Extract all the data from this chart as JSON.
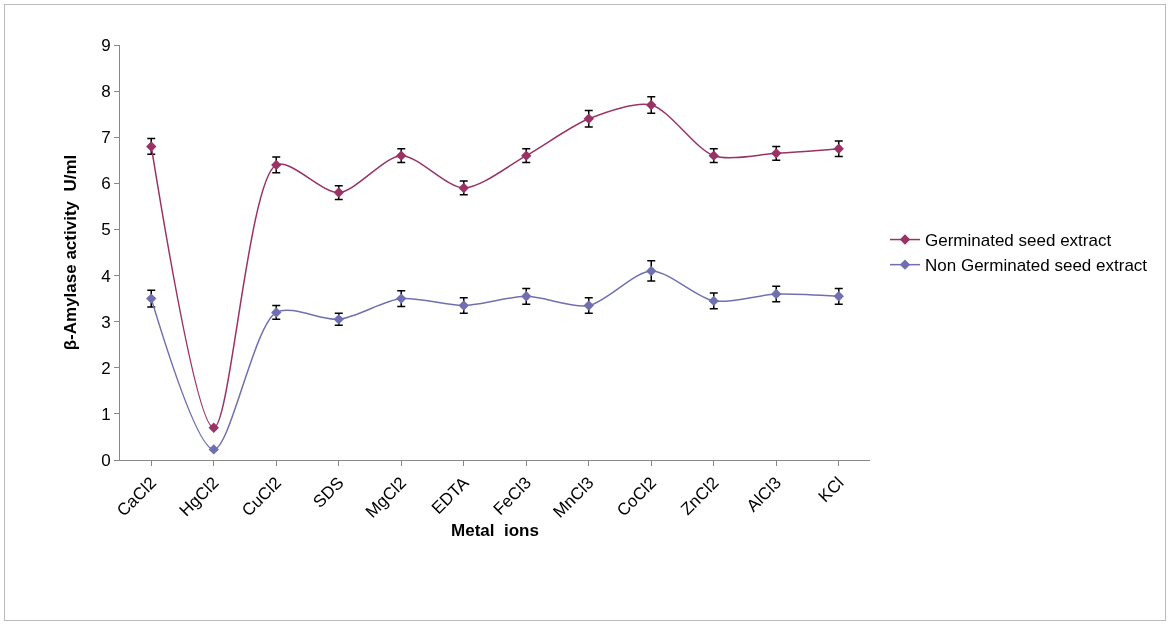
{
  "chart_data": {
    "type": "line",
    "xlabel": "Metal  ions",
    "ylabel": "β-Amylase activity  U/ml",
    "categories": [
      "CaCl2",
      "HgCl2",
      "CuCl2",
      "SDS",
      "MgCl2",
      "EDTA",
      "FeCl3",
      "MnCl3",
      "CoCl2",
      "ZnCl2",
      "AlCl3",
      "KCl"
    ],
    "series": [
      {
        "name": "Germinated seed extract",
        "color": "#993366",
        "values": [
          6.8,
          0.7,
          6.4,
          5.8,
          6.6,
          5.9,
          6.6,
          7.4,
          7.7,
          6.6,
          6.65,
          6.75
        ],
        "errors": [
          0.17,
          null,
          0.17,
          0.15,
          0.15,
          0.15,
          0.15,
          0.18,
          0.18,
          0.15,
          0.15,
          0.17
        ]
      },
      {
        "name": "Non Germinated seed extract",
        "color": "#7070b0",
        "values": [
          3.5,
          0.23,
          3.2,
          3.05,
          3.5,
          3.35,
          3.55,
          3.35,
          4.1,
          3.45,
          3.6,
          3.55
        ],
        "errors": [
          0.18,
          null,
          0.15,
          0.13,
          0.17,
          0.17,
          0.17,
          0.17,
          0.22,
          0.17,
          0.17,
          0.17
        ]
      }
    ],
    "ylim": [
      0,
      9
    ],
    "yticks": [
      0,
      1,
      2,
      3,
      4,
      5,
      6,
      7,
      8,
      9
    ],
    "grid": false,
    "legend": "right",
    "marker": "diamond",
    "line_style": "solid"
  }
}
